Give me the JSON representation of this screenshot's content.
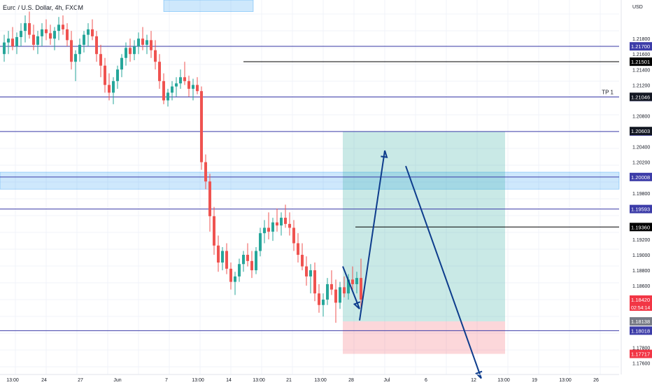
{
  "chart_data": {
    "type": "candlestick",
    "header": "Euro / U.S. Dollar, 4h, FXCM",
    "price_currency": "USD",
    "y_range": [
      1.1745,
      1.223
    ],
    "y_ticks": [
      "1.21800",
      "1.21600",
      "1.21400",
      "1.21200",
      "1.20800",
      "1.20400",
      "1.20200",
      "1.19800",
      "1.19200",
      "1.19000",
      "1.18800",
      "1.18600",
      "1.17800",
      "1.17600"
    ],
    "x_ticks": [
      "13:00",
      "24",
      "27",
      "Jun",
      "7",
      "13:00",
      "14",
      "13:00",
      "21",
      "13:00",
      "28",
      "Jul",
      "6",
      "12",
      "13:00",
      "19",
      "13:00",
      "26"
    ],
    "horizontal_lines": [
      {
        "price": 1.217,
        "label": "1.21700",
        "color": "#3c3ca8"
      },
      {
        "price": 1.21501,
        "label": "1.21501",
        "color": "#000000"
      },
      {
        "price": 1.21044,
        "label": "1.21044",
        "color": "#3c3ca8",
        "note": "TP 1"
      },
      {
        "price": 1.20597,
        "label": "1.20597",
        "color": "#3c3ca8"
      },
      {
        "price": 1.20008,
        "label": "1.20008",
        "color": "#3c3ca8"
      },
      {
        "price": 1.19593,
        "label": "1.19593",
        "color": "#3c3ca8"
      },
      {
        "price": 1.1936,
        "label": "1.19360",
        "color": "#000000"
      },
      {
        "price": 1.18018,
        "label": "1.18018",
        "color": "#3c3ca8"
      }
    ],
    "price_badges": [
      {
        "price": 1.21046,
        "label": "1.21046",
        "color": "#131722"
      },
      {
        "price": 1.20603,
        "label": "1.20603",
        "color": "#131722"
      },
      {
        "price": 1.1842,
        "label": "1.18420",
        "sublabel": "02:54:14",
        "color": "#f23645"
      },
      {
        "price": 1.18138,
        "label": "1.18138",
        "color": "#787b86"
      },
      {
        "price": 1.17717,
        "label": "1.17717",
        "color": "#f23645"
      }
    ],
    "zones": [
      {
        "name": "supply-zone-top",
        "price_from": 1.223,
        "price_to": 1.2215
      },
      {
        "name": "supply-zone-mid",
        "price_from": 1.2007,
        "price_to": 1.1985
      }
    ],
    "position": {
      "entry": 1.18138,
      "take_profit": 1.20597,
      "stop_loss": 1.17717,
      "start_index": 74,
      "end_index": 103
    },
    "arrows": [
      {
        "from": [
          74,
          1.1885
        ],
        "to": [
          78,
          1.183
        ]
      },
      {
        "from": [
          78,
          1.1815
        ],
        "to": [
          84,
          1.2035
        ]
      },
      {
        "from": [
          89,
          1.2015
        ],
        "to": [
          107,
          1.174
        ]
      }
    ],
    "candles": [
      [
        1.216,
        1.2185,
        1.215,
        1.2175
      ],
      [
        1.2175,
        1.219,
        1.216,
        1.218
      ],
      [
        1.218,
        1.2195,
        1.2165,
        1.217
      ],
      [
        1.217,
        1.2188,
        1.216,
        1.2182
      ],
      [
        1.2182,
        1.22,
        1.217,
        1.219
      ],
      [
        1.219,
        1.221,
        1.2175,
        1.22
      ],
      [
        1.22,
        1.2215,
        1.218,
        1.2185
      ],
      [
        1.2185,
        1.2198,
        1.2165,
        1.2172
      ],
      [
        1.2172,
        1.219,
        1.216,
        1.2183
      ],
      [
        1.2183,
        1.22,
        1.217,
        1.2192
      ],
      [
        1.2192,
        1.2205,
        1.2178,
        1.2187
      ],
      [
        1.2187,
        1.2198,
        1.2172,
        1.218
      ],
      [
        1.218,
        1.2195,
        1.2165,
        1.219
      ],
      [
        1.219,
        1.2208,
        1.2178,
        1.2198
      ],
      [
        1.2198,
        1.221,
        1.2185,
        1.2192
      ],
      [
        1.2192,
        1.22,
        1.217,
        1.2178
      ],
      [
        1.2178,
        1.219,
        1.214,
        1.215
      ],
      [
        1.215,
        1.2165,
        1.2125,
        1.216
      ],
      [
        1.216,
        1.218,
        1.215,
        1.2172
      ],
      [
        1.2172,
        1.219,
        1.2162,
        1.2185
      ],
      [
        1.2185,
        1.22,
        1.217,
        1.2192
      ],
      [
        1.2192,
        1.2205,
        1.2178,
        1.2183
      ],
      [
        1.2183,
        1.219,
        1.215,
        1.216
      ],
      [
        1.216,
        1.2172,
        1.213,
        1.2145
      ],
      [
        1.2145,
        1.2155,
        1.211,
        1.212
      ],
      [
        1.212,
        1.2135,
        1.21,
        1.211
      ],
      [
        1.211,
        1.213,
        1.2095,
        1.2125
      ],
      [
        1.2125,
        1.2145,
        1.2115,
        1.214
      ],
      [
        1.214,
        1.216,
        1.213,
        1.2155
      ],
      [
        1.2155,
        1.2175,
        1.2145,
        1.2168
      ],
      [
        1.2168,
        1.218,
        1.215,
        1.216
      ],
      [
        1.216,
        1.2178,
        1.2152,
        1.217
      ],
      [
        1.217,
        1.2188,
        1.216,
        1.218
      ],
      [
        1.218,
        1.2195,
        1.2165,
        1.2172
      ],
      [
        1.2172,
        1.2185,
        1.216,
        1.2178
      ],
      [
        1.2178,
        1.219,
        1.2155,
        1.2165
      ],
      [
        1.2165,
        1.2178,
        1.214,
        1.215
      ],
      [
        1.215,
        1.216,
        1.2115,
        1.2125
      ],
      [
        1.2125,
        1.2135,
        1.2095,
        1.21
      ],
      [
        1.21,
        1.2115,
        1.2092,
        1.211
      ],
      [
        1.211,
        1.2125,
        1.21,
        1.2118
      ],
      [
        1.2118,
        1.213,
        1.2105,
        1.2122
      ],
      [
        1.2122,
        1.214,
        1.2115,
        1.213
      ],
      [
        1.213,
        1.215,
        1.212,
        1.2125
      ],
      [
        1.2125,
        1.2132,
        1.2105,
        1.2115
      ],
      [
        1.2115,
        1.2128,
        1.21,
        1.212
      ],
      [
        1.212,
        1.213,
        1.2108,
        1.2112
      ],
      [
        1.2112,
        1.2118,
        1.201,
        1.202
      ],
      [
        1.202,
        1.203,
        1.1985,
        1.1995
      ],
      [
        1.1995,
        1.2005,
        1.193,
        1.195
      ],
      [
        1.195,
        1.1962,
        1.19,
        1.1912
      ],
      [
        1.1912,
        1.1925,
        1.1878,
        1.189
      ],
      [
        1.189,
        1.191,
        1.188,
        1.1905
      ],
      [
        1.1905,
        1.1915,
        1.1875,
        1.1882
      ],
      [
        1.1882,
        1.189,
        1.1855,
        1.1865
      ],
      [
        1.1865,
        1.1878,
        1.1848,
        1.1872
      ],
      [
        1.1872,
        1.1895,
        1.1865,
        1.1888
      ],
      [
        1.1888,
        1.1905,
        1.1878,
        1.19
      ],
      [
        1.19,
        1.1915,
        1.1885,
        1.1892
      ],
      [
        1.1892,
        1.1905,
        1.187,
        1.188
      ],
      [
        1.188,
        1.191,
        1.1875,
        1.1905
      ],
      [
        1.1905,
        1.1935,
        1.1898,
        1.1928
      ],
      [
        1.1928,
        1.1945,
        1.1915,
        1.1935
      ],
      [
        1.1935,
        1.1955,
        1.192,
        1.193
      ],
      [
        1.193,
        1.1948,
        1.1918,
        1.1942
      ],
      [
        1.1942,
        1.196,
        1.193,
        1.1938
      ],
      [
        1.1938,
        1.1955,
        1.1925,
        1.1948
      ],
      [
        1.1948,
        1.1965,
        1.1935,
        1.194
      ],
      [
        1.194,
        1.1955,
        1.1925,
        1.1935
      ],
      [
        1.1935,
        1.1945,
        1.1905,
        1.1915
      ],
      [
        1.1915,
        1.1928,
        1.189,
        1.19
      ],
      [
        1.19,
        1.1915,
        1.188,
        1.1885
      ],
      [
        1.1885,
        1.1898,
        1.186,
        1.1872
      ],
      [
        1.1872,
        1.1888,
        1.185,
        1.188
      ],
      [
        1.188,
        1.189,
        1.184,
        1.185
      ],
      [
        1.185,
        1.1862,
        1.1825,
        1.1835
      ],
      [
        1.1835,
        1.185,
        1.182,
        1.1842
      ],
      [
        1.1842,
        1.187,
        1.1835,
        1.1862
      ],
      [
        1.1862,
        1.188,
        1.1848,
        1.1855
      ],
      [
        1.1855,
        1.1868,
        1.1812,
        1.1838
      ],
      [
        1.1838,
        1.1865,
        1.183,
        1.1858
      ],
      [
        1.1858,
        1.1872,
        1.1845,
        1.185
      ],
      [
        1.185,
        1.1875,
        1.1842,
        1.1868
      ],
      [
        1.1868,
        1.1885,
        1.1855,
        1.1862
      ],
      [
        1.1862,
        1.1878,
        1.185,
        1.187
      ],
      [
        1.187,
        1.1895,
        1.1828,
        1.1842
      ]
    ],
    "gridlines": true
  }
}
